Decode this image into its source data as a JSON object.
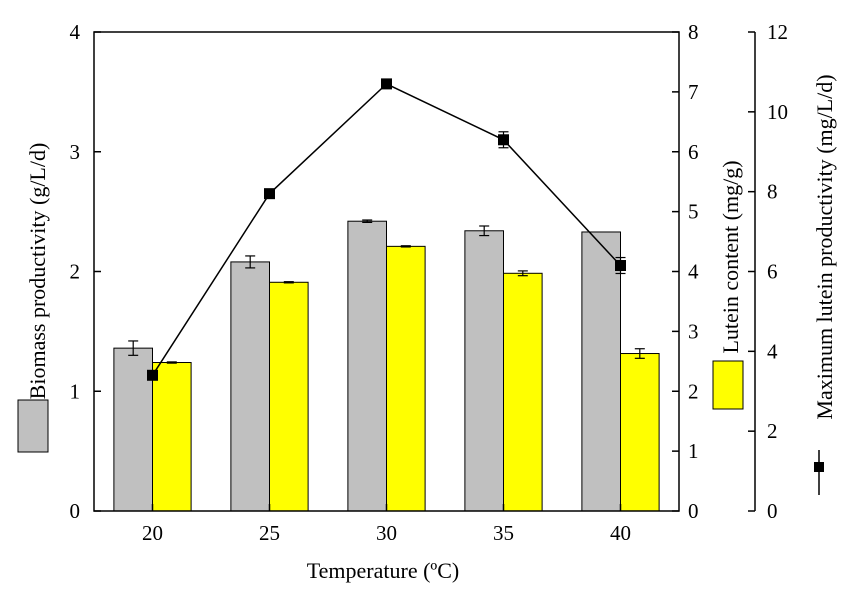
{
  "chart_data": {
    "type": "bar",
    "categories": [
      "20",
      "25",
      "30",
      "35",
      "40"
    ],
    "xlabel": "Temperature (ºC)",
    "series": [
      {
        "name": "Biomass productivity (g/L/d)",
        "kind": "bar",
        "axis": "left",
        "color": "#c0c0c0",
        "values": [
          1.36,
          2.08,
          2.42,
          2.34,
          2.33
        ],
        "errors": [
          0.06,
          0.05,
          0.01,
          0.04,
          0.0
        ]
      },
      {
        "name": "Lutein content (mg/g)",
        "kind": "bar",
        "axis": "middle",
        "color": "#ffff00",
        "values": [
          2.48,
          3.82,
          4.42,
          3.97,
          2.63
        ],
        "errors": [
          0.01,
          0.01,
          0.01,
          0.04,
          0.08
        ]
      },
      {
        "name": "Maximum lutein productivity (mg/L/d)",
        "kind": "line",
        "axis": "right",
        "color": "#000000",
        "values": [
          3.4,
          7.95,
          10.7,
          9.3,
          6.15
        ],
        "errors": [
          0.0,
          0.08,
          0.0,
          0.2,
          0.2
        ]
      }
    ],
    "axes": {
      "left": {
        "label": "Biomass productivity (g/L/d)",
        "ylim": [
          0,
          4
        ],
        "ticks": [
          "0",
          "1",
          "2",
          "3",
          "4"
        ]
      },
      "middle": {
        "label": "Lutein content (mg/g)",
        "ylim": [
          0,
          8
        ],
        "ticks": [
          "0",
          "1",
          "2",
          "3",
          "4",
          "5",
          "6",
          "7",
          "8"
        ]
      },
      "right": {
        "label": "Maximum lutein productivity (mg/L/d)",
        "ylim": [
          0,
          12
        ],
        "ticks": [
          "0",
          "2",
          "4",
          "6",
          "8",
          "10",
          "12"
        ]
      }
    }
  }
}
